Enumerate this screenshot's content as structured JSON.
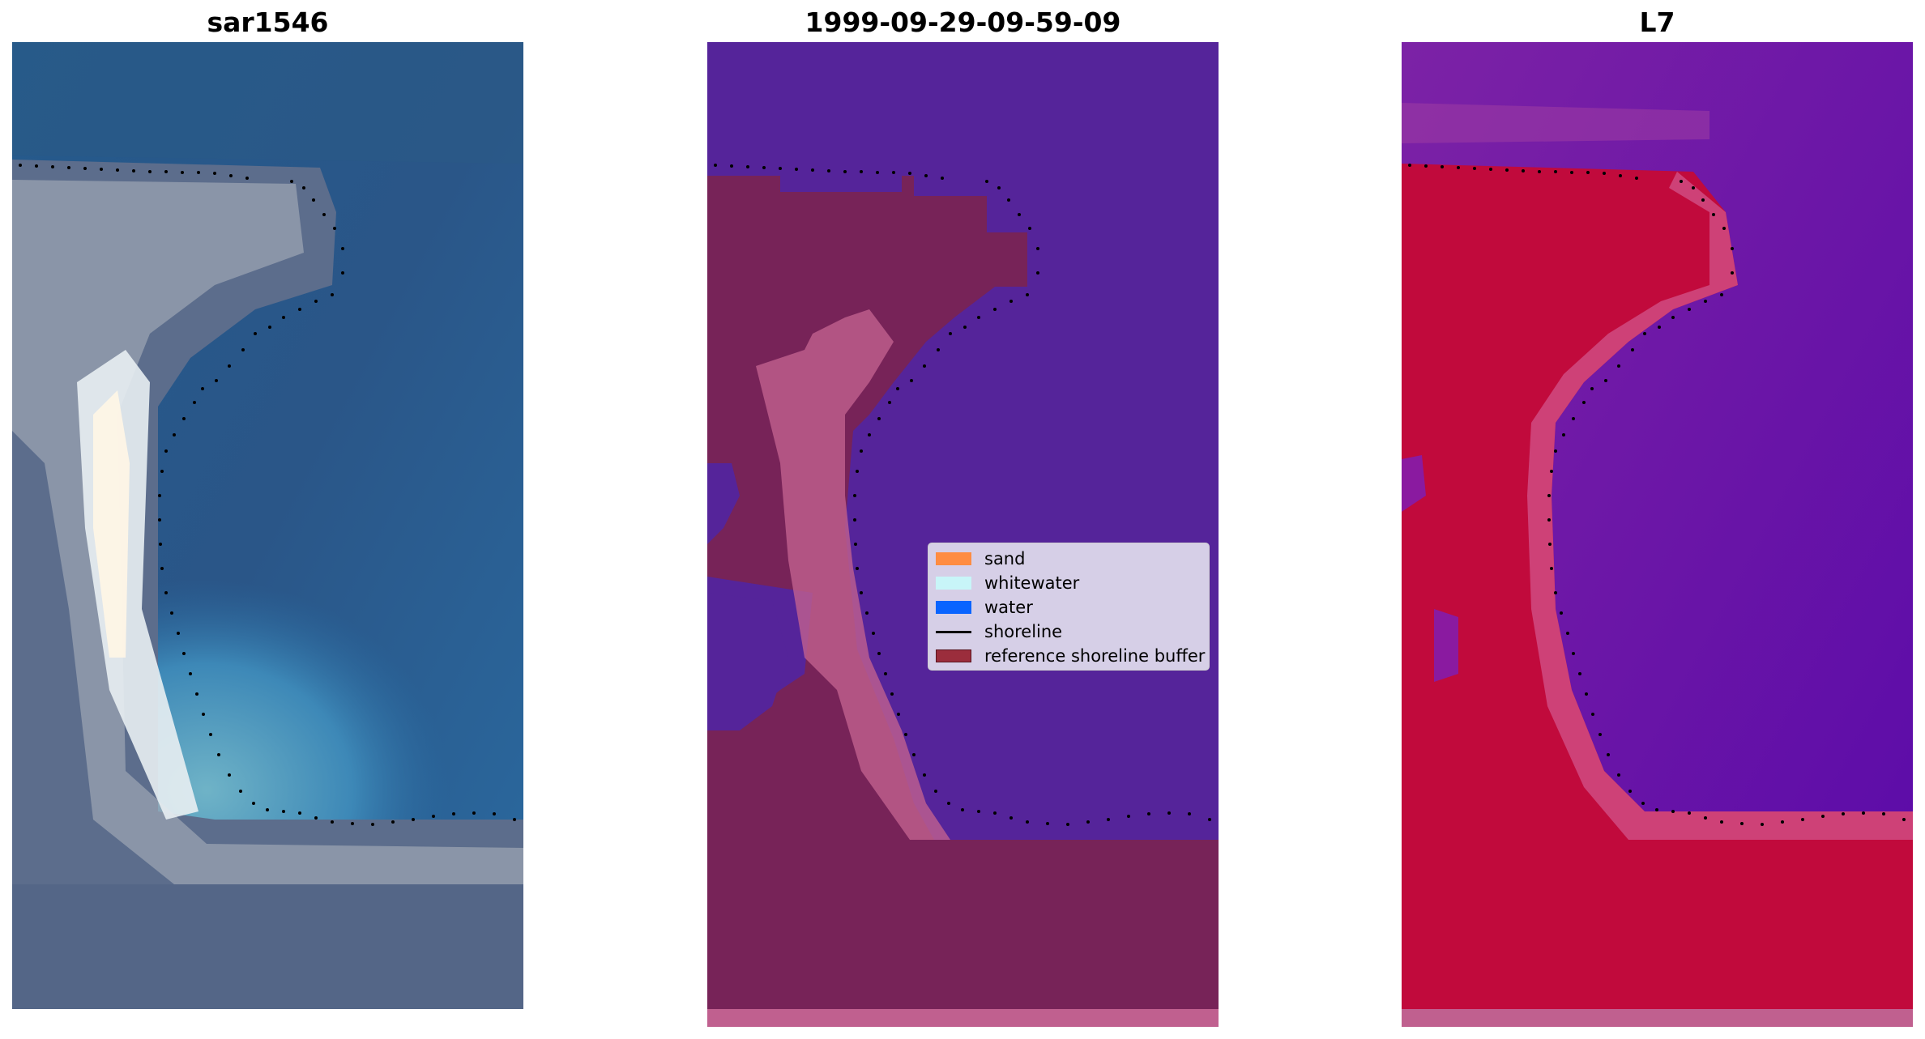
{
  "panels": [
    {
      "title": "sar1546"
    },
    {
      "title": "1999-09-29-09-59-09"
    },
    {
      "title": "L7"
    }
  ],
  "legend": {
    "items": [
      {
        "label": "sand",
        "color": "#ff8c42",
        "kind": "patch"
      },
      {
        "label": "whitewater",
        "color": "#c8f5f8",
        "kind": "patch"
      },
      {
        "label": "water",
        "color": "#0a64ff",
        "kind": "patch"
      },
      {
        "label": "shoreline",
        "color": "#000000",
        "kind": "line"
      },
      {
        "label": "reference shoreline buffer",
        "color": "#9b2d3c",
        "kind": "patch"
      }
    ]
  },
  "colors": {
    "water_class": "#55249a",
    "buffer_overlay": "#772358",
    "buffer_edge": "#c0608f",
    "index_low": "#6c17a8",
    "index_high": "#c10a3c"
  }
}
